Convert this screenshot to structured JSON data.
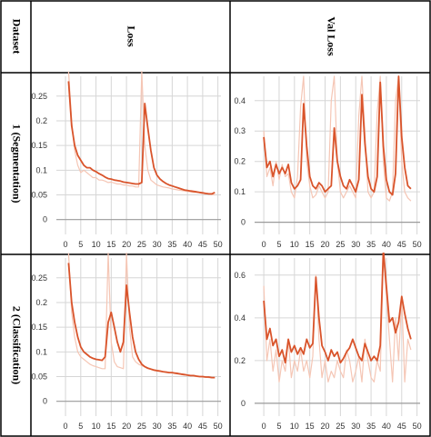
{
  "table": {
    "header_dataset": "Dataset",
    "header_loss": "Loss",
    "header_val_loss": "Val Loss",
    "rows": [
      {
        "label": "1 (Segmentation)"
      },
      {
        "label": "2 (Classification)"
      }
    ]
  },
  "colors": {
    "line_main": "#d9542b",
    "line_raw": "#f5c6b5",
    "grid": "#d6d6d6",
    "border": "#000000"
  },
  "chart_data": [
    {
      "id": "seg-loss",
      "type": "line",
      "title": "",
      "xlim": [
        -3,
        51
      ],
      "ylim": [
        -0.03,
        0.29
      ],
      "xticks": [
        0,
        5,
        10,
        15,
        20,
        25,
        30,
        35,
        40,
        45,
        50
      ],
      "yticks": [
        0,
        0.05,
        0.1,
        0.15,
        0.2,
        0.25
      ],
      "yticklabels": [
        "0",
        "0.05",
        "0.1",
        "0.15",
        "0.2",
        "0.25"
      ],
      "series": [
        {
          "role": "raw",
          "x": [
            1,
            2,
            3,
            4,
            5,
            6,
            7,
            8,
            9,
            10,
            11,
            12,
            13,
            14,
            15,
            16,
            17,
            18,
            19,
            20,
            21,
            22,
            23,
            24,
            25,
            26,
            27,
            28,
            29,
            30,
            31,
            32,
            33,
            34,
            35,
            36,
            37,
            38,
            39,
            40,
            41,
            42,
            43,
            44,
            45,
            46,
            47,
            48,
            49
          ],
          "y": [
            0.3,
            0.2,
            0.14,
            0.11,
            0.095,
            0.1,
            0.095,
            0.09,
            0.085,
            0.085,
            0.08,
            0.08,
            0.078,
            0.075,
            0.076,
            0.074,
            0.072,
            0.072,
            0.07,
            0.07,
            0.068,
            0.068,
            0.066,
            0.066,
            0.3,
            0.15,
            0.1,
            0.08,
            0.075,
            0.07,
            0.068,
            0.066,
            0.065,
            0.064,
            0.062,
            0.061,
            0.06,
            0.059,
            0.058,
            0.057,
            0.056,
            0.055,
            0.055,
            0.054,
            0.053,
            0.052,
            0.052,
            0.051,
            0.05
          ]
        },
        {
          "role": "smoothed",
          "x": [
            1,
            2,
            3,
            4,
            5,
            6,
            7,
            8,
            9,
            10,
            11,
            12,
            13,
            14,
            15,
            16,
            17,
            18,
            19,
            20,
            21,
            22,
            23,
            24,
            25,
            26,
            27,
            28,
            29,
            30,
            31,
            32,
            33,
            34,
            35,
            36,
            37,
            38,
            39,
            40,
            41,
            42,
            43,
            44,
            45,
            46,
            47,
            48,
            49
          ],
          "y": [
            0.28,
            0.19,
            0.15,
            0.13,
            0.12,
            0.11,
            0.105,
            0.105,
            0.1,
            0.097,
            0.093,
            0.09,
            0.086,
            0.083,
            0.082,
            0.08,
            0.079,
            0.078,
            0.076,
            0.075,
            0.074,
            0.073,
            0.072,
            0.072,
            0.075,
            0.235,
            0.185,
            0.14,
            0.105,
            0.09,
            0.082,
            0.077,
            0.073,
            0.07,
            0.068,
            0.066,
            0.064,
            0.062,
            0.06,
            0.059,
            0.058,
            0.057,
            0.056,
            0.055,
            0.054,
            0.053,
            0.052,
            0.052,
            0.055
          ]
        }
      ]
    },
    {
      "id": "seg-val-loss",
      "type": "line",
      "title": "",
      "xlim": [
        -3,
        51
      ],
      "ylim": [
        -0.04,
        0.48
      ],
      "xticks": [
        0,
        5,
        10,
        15,
        20,
        25,
        30,
        35,
        40,
        45,
        50
      ],
      "yticks": [
        0,
        0.1,
        0.2,
        0.3,
        0.4
      ],
      "yticklabels": [
        "0",
        "0.1",
        "0.2",
        "0.3",
        "0.4"
      ],
      "series": [
        {
          "role": "raw",
          "x": [
            0,
            1,
            2,
            3,
            4,
            5,
            6,
            7,
            8,
            9,
            10,
            11,
            12,
            13,
            14,
            15,
            16,
            17,
            18,
            19,
            20,
            21,
            22,
            23,
            24,
            25,
            26,
            27,
            28,
            29,
            30,
            31,
            32,
            33,
            34,
            35,
            36,
            37,
            38,
            39,
            40,
            41,
            42,
            43,
            44,
            45,
            46,
            47,
            48
          ],
          "y": [
            0.3,
            0.15,
            0.18,
            0.12,
            0.2,
            0.14,
            0.19,
            0.15,
            0.16,
            0.1,
            0.08,
            0.15,
            0.38,
            0.48,
            0.2,
            0.12,
            0.08,
            0.09,
            0.12,
            0.1,
            0.08,
            0.1,
            0.4,
            0.48,
            0.2,
            0.1,
            0.08,
            0.1,
            0.12,
            0.1,
            0.08,
            0.35,
            0.48,
            0.3,
            0.1,
            0.08,
            0.1,
            0.36,
            0.48,
            0.2,
            0.08,
            0.07,
            0.1,
            0.4,
            0.48,
            0.2,
            0.1,
            0.08,
            0.07
          ]
        },
        {
          "role": "smoothed",
          "x": [
            0,
            1,
            2,
            3,
            4,
            5,
            6,
            7,
            8,
            9,
            10,
            11,
            12,
            13,
            14,
            15,
            16,
            17,
            18,
            19,
            20,
            21,
            22,
            23,
            24,
            25,
            26,
            27,
            28,
            29,
            30,
            31,
            32,
            33,
            34,
            35,
            36,
            37,
            38,
            39,
            40,
            41,
            42,
            43,
            44,
            45,
            46,
            47,
            48
          ],
          "y": [
            0.28,
            0.18,
            0.2,
            0.15,
            0.19,
            0.16,
            0.18,
            0.16,
            0.19,
            0.13,
            0.11,
            0.12,
            0.14,
            0.39,
            0.25,
            0.15,
            0.12,
            0.11,
            0.13,
            0.12,
            0.1,
            0.11,
            0.12,
            0.31,
            0.2,
            0.15,
            0.12,
            0.11,
            0.14,
            0.12,
            0.1,
            0.14,
            0.42,
            0.26,
            0.15,
            0.11,
            0.1,
            0.15,
            0.46,
            0.25,
            0.14,
            0.1,
            0.09,
            0.16,
            0.48,
            0.28,
            0.18,
            0.12,
            0.11
          ]
        }
      ]
    },
    {
      "id": "cls-loss",
      "type": "line",
      "title": "",
      "xlim": [
        -3,
        51
      ],
      "ylim": [
        -0.03,
        0.29
      ],
      "xticks": [
        0,
        5,
        10,
        15,
        20,
        25,
        30,
        35,
        40,
        45,
        50
      ],
      "yticks": [
        0,
        0.05,
        0.1,
        0.15,
        0.2,
        0.25
      ],
      "yticklabels": [
        "0",
        "0.05",
        "0.1",
        "0.15",
        "0.2",
        "0.25"
      ],
      "series": [
        {
          "role": "raw",
          "x": [
            1,
            2,
            3,
            4,
            5,
            6,
            7,
            8,
            9,
            10,
            11,
            12,
            13,
            14,
            15,
            16,
            17,
            18,
            19,
            20,
            21,
            22,
            23,
            24,
            25,
            26,
            27,
            28,
            29,
            30,
            31,
            32,
            33,
            34,
            35,
            36,
            37,
            38,
            39,
            40,
            41,
            42,
            43,
            44,
            45,
            46,
            47,
            48,
            49
          ],
          "y": [
            0.3,
            0.18,
            0.13,
            0.1,
            0.09,
            0.085,
            0.08,
            0.075,
            0.072,
            0.07,
            0.068,
            0.066,
            0.066,
            0.3,
            0.12,
            0.08,
            0.07,
            0.068,
            0.066,
            0.3,
            0.15,
            0.09,
            0.08,
            0.075,
            0.072,
            0.07,
            0.068,
            0.066,
            0.064,
            0.063,
            0.062,
            0.06,
            0.06,
            0.058,
            0.057,
            0.056,
            0.055,
            0.054,
            0.053,
            0.053,
            0.052,
            0.051,
            0.05,
            0.05,
            0.049,
            0.049,
            0.048,
            0.048,
            0.048
          ]
        },
        {
          "role": "smoothed",
          "x": [
            1,
            2,
            3,
            4,
            5,
            6,
            7,
            8,
            9,
            10,
            11,
            12,
            13,
            14,
            15,
            16,
            17,
            18,
            19,
            20,
            21,
            22,
            23,
            24,
            25,
            26,
            27,
            28,
            29,
            30,
            31,
            32,
            33,
            34,
            35,
            36,
            37,
            38,
            39,
            40,
            41,
            42,
            43,
            44,
            45,
            46,
            47,
            48,
            49
          ],
          "y": [
            0.28,
            0.2,
            0.16,
            0.13,
            0.11,
            0.1,
            0.095,
            0.09,
            0.087,
            0.085,
            0.084,
            0.083,
            0.09,
            0.16,
            0.18,
            0.15,
            0.12,
            0.1,
            0.12,
            0.235,
            0.18,
            0.13,
            0.1,
            0.085,
            0.075,
            0.07,
            0.067,
            0.065,
            0.063,
            0.062,
            0.061,
            0.06,
            0.059,
            0.058,
            0.058,
            0.057,
            0.056,
            0.055,
            0.054,
            0.053,
            0.052,
            0.052,
            0.051,
            0.05,
            0.05,
            0.049,
            0.049,
            0.048,
            0.048
          ]
        }
      ]
    },
    {
      "id": "cls-val-loss",
      "type": "line",
      "title": "",
      "xlim": [
        -3,
        51
      ],
      "ylim": [
        -0.06,
        0.68
      ],
      "xticks": [
        0,
        5,
        10,
        15,
        20,
        25,
        30,
        35,
        40,
        45,
        50
      ],
      "yticks": [
        0,
        0.2,
        0.4,
        0.6
      ],
      "yticklabels": [
        "0",
        "0.2",
        "0.4",
        "0.6"
      ],
      "series": [
        {
          "role": "raw",
          "x": [
            0,
            1,
            2,
            3,
            4,
            5,
            6,
            7,
            8,
            9,
            10,
            11,
            12,
            13,
            14,
            15,
            16,
            17,
            18,
            19,
            20,
            21,
            22,
            23,
            24,
            25,
            26,
            27,
            28,
            29,
            30,
            31,
            32,
            33,
            34,
            35,
            36,
            37,
            38,
            39,
            40,
            41,
            42,
            43,
            44,
            45,
            46,
            47,
            48
          ],
          "y": [
            0.55,
            0.2,
            0.3,
            0.15,
            0.25,
            0.1,
            0.2,
            0.15,
            0.3,
            0.12,
            0.2,
            0.15,
            0.25,
            0.15,
            0.2,
            0.12,
            0.22,
            0.6,
            0.3,
            0.12,
            0.2,
            0.1,
            0.15,
            0.12,
            0.2,
            0.15,
            0.12,
            0.25,
            0.2,
            0.1,
            0.15,
            0.22,
            0.1,
            0.3,
            0.2,
            0.12,
            0.1,
            0.2,
            0.15,
            0.7,
            0.5,
            0.3,
            0.1,
            0.4,
            0.2,
            0.5,
            0.1,
            0.3,
            0.25
          ]
        },
        {
          "role": "smoothed",
          "x": [
            0,
            1,
            2,
            3,
            4,
            5,
            6,
            7,
            8,
            9,
            10,
            11,
            12,
            13,
            14,
            15,
            16,
            17,
            18,
            19,
            20,
            21,
            22,
            23,
            24,
            25,
            26,
            27,
            28,
            29,
            30,
            31,
            32,
            33,
            34,
            35,
            36,
            37,
            38,
            39,
            40,
            41,
            42,
            43,
            44,
            45,
            46,
            47,
            48
          ],
          "y": [
            0.48,
            0.3,
            0.35,
            0.27,
            0.3,
            0.22,
            0.25,
            0.19,
            0.3,
            0.24,
            0.27,
            0.23,
            0.26,
            0.23,
            0.3,
            0.26,
            0.28,
            0.59,
            0.4,
            0.27,
            0.24,
            0.2,
            0.25,
            0.22,
            0.24,
            0.19,
            0.21,
            0.24,
            0.26,
            0.3,
            0.26,
            0.22,
            0.2,
            0.28,
            0.24,
            0.2,
            0.22,
            0.2,
            0.27,
            0.72,
            0.55,
            0.38,
            0.4,
            0.33,
            0.38,
            0.5,
            0.42,
            0.35,
            0.3
          ]
        }
      ]
    }
  ]
}
